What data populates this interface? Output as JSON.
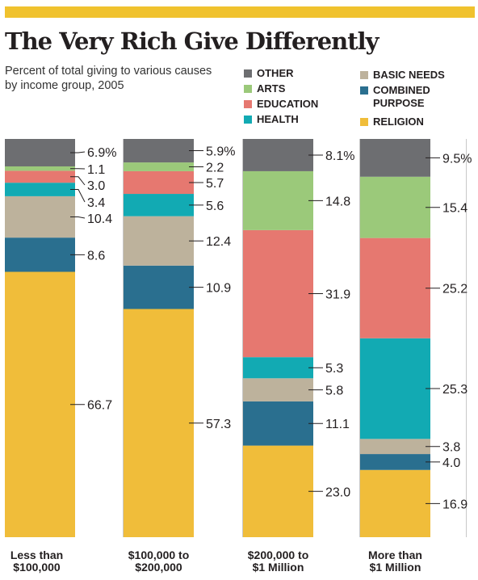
{
  "header": {
    "title": "The Very Rich Give Differently",
    "subtitle": "Percent of total giving to various causes by income group, 2005"
  },
  "legend": [
    {
      "key": "other",
      "label": "OTHER"
    },
    {
      "key": "arts",
      "label": "ARTS"
    },
    {
      "key": "education",
      "label": "EDUCATION"
    },
    {
      "key": "health",
      "label": "HEALTH"
    },
    {
      "key": "basic",
      "label": "BASIC NEEDS"
    },
    {
      "key": "combined",
      "label": "COMBINED PURPOSE"
    },
    {
      "key": "religion",
      "label": "RELIGION"
    }
  ],
  "colors": {
    "religion": "#f0bd3a",
    "combined": "#2a6f8f",
    "basic": "#bdb29c",
    "health": "#12aab3",
    "education": "#e67870",
    "arts": "#9bc97a",
    "other": "#6d6e71",
    "accent": "#f0c22e"
  },
  "chart_data": {
    "type": "bar",
    "stacked": true,
    "ylim": [
      0,
      100
    ],
    "categories": [
      "Less than $100,000",
      "$100,000 to $200,000",
      "$200,000 to $1 Million",
      "More than $1 Million"
    ],
    "series": [
      {
        "name": "RELIGION",
        "key": "religion",
        "values": [
          66.7,
          57.3,
          23.0,
          16.9
        ]
      },
      {
        "name": "COMBINED PURPOSE",
        "key": "combined",
        "values": [
          8.6,
          10.9,
          11.1,
          4.0
        ]
      },
      {
        "name": "BASIC NEEDS",
        "key": "basic",
        "values": [
          10.4,
          12.4,
          5.8,
          3.8
        ]
      },
      {
        "name": "HEALTH",
        "key": "health",
        "values": [
          3.4,
          5.6,
          5.3,
          25.3
        ]
      },
      {
        "name": "EDUCATION",
        "key": "education",
        "values": [
          3.0,
          5.7,
          31.9,
          25.2
        ]
      },
      {
        "name": "ARTS",
        "key": "arts",
        "values": [
          1.1,
          2.2,
          14.8,
          15.4
        ]
      },
      {
        "name": "OTHER",
        "key": "other",
        "values": [
          6.9,
          5.9,
          8.1,
          9.5
        ]
      }
    ],
    "data_labels": [
      [
        "66.7",
        "8.6",
        "10.4",
        "3.4",
        "3.0",
        "1.1",
        "6.9%"
      ],
      [
        "57.3",
        "10.9",
        "12.4",
        "5.6",
        "5.7",
        "2.2",
        "5.9%"
      ],
      [
        "23.0",
        "11.1",
        "5.8",
        "5.3",
        "31.9",
        "14.8",
        "8.1%"
      ],
      [
        "16.9",
        "4.0",
        "3.8",
        "25.3",
        "25.2",
        "15.4",
        "9.5%"
      ]
    ],
    "category_labels": [
      [
        "Less than",
        "$100,000"
      ],
      [
        "$100,000 to",
        "$200,000"
      ],
      [
        "$200,000 to",
        "$1 Million"
      ],
      [
        "More than",
        "$1 Million"
      ]
    ]
  }
}
